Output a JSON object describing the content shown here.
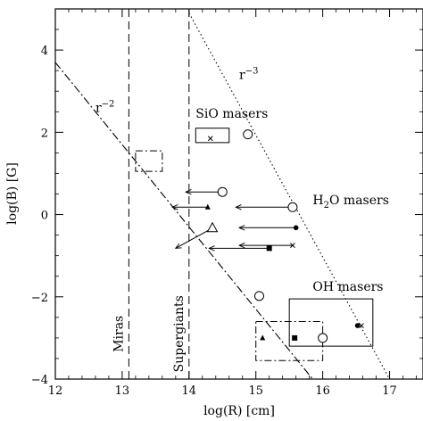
{
  "chart_data": {
    "type": "scatter",
    "xlabel": "log(R) [cm]",
    "ylabel": "log(B) [G]",
    "xlim": [
      12,
      17.5
    ],
    "ylim": [
      -4,
      5
    ],
    "x_ticks": [
      12,
      13,
      14,
      15,
      16,
      17
    ],
    "y_ticks": [
      -4,
      -2,
      0,
      2,
      4
    ],
    "x_tick_labels": [
      "12",
      "13",
      "14",
      "15",
      "16",
      "17"
    ],
    "y_tick_labels": [
      "−4",
      "−2",
      "0",
      "2",
      "4"
    ],
    "grid": false,
    "vertical_lines": [
      {
        "x": 13.1,
        "label": "Miras",
        "label_y": -2.9
      },
      {
        "x": 14.0,
        "label": "Supergiants",
        "label_y": -2.9
      }
    ],
    "power_laws": [
      {
        "label": "r",
        "exponent": "−2",
        "style": "dash-dot",
        "points": [
          [
            12,
            3.7
          ],
          [
            15.85,
            -4
          ]
        ],
        "label_at": [
          12.6,
          2.5
        ]
      },
      {
        "label": "r",
        "exponent": "−3",
        "style": "dotted",
        "points": [
          [
            14.0,
            4.9
          ],
          [
            17.0,
            -4
          ]
        ],
        "label_at": [
          14.75,
          3.3
        ]
      }
    ],
    "annotations": [
      {
        "text": "SiO masers",
        "x": 14.1,
        "y": 2.35
      },
      {
        "text": "H",
        "sub": "2",
        "rest": "O masers",
        "x": 15.85,
        "y": 0.25
      },
      {
        "text": "OH masers",
        "x": 15.85,
        "y": -1.85
      }
    ],
    "regions": [
      {
        "style": "solid",
        "x": [
          14.1,
          14.6
        ],
        "y": [
          1.75,
          2.1
        ]
      },
      {
        "style": "dash-dot",
        "x": [
          13.2,
          13.6
        ],
        "y": [
          1.05,
          1.55
        ]
      },
      {
        "style": "dash-dot",
        "x": [
          15.0,
          16.0
        ],
        "y": [
          -3.55,
          -2.6
        ]
      },
      {
        "style": "solid",
        "x": [
          15.5,
          16.75
        ],
        "y": [
          -3.2,
          -2.05
        ]
      }
    ],
    "points": [
      {
        "marker": "x",
        "x": 14.32,
        "y": 1.85
      },
      {
        "marker": "open-circle",
        "x": 14.88,
        "y": 1.95
      },
      {
        "marker": "open-circle",
        "x": 14.5,
        "y": 0.55
      },
      {
        "marker": "open-circle",
        "x": 15.55,
        "y": 0.18
      },
      {
        "marker": "open-triangle",
        "x": 14.35,
        "y": -0.33
      },
      {
        "marker": "open-circle",
        "x": 15.05,
        "y": -1.98
      },
      {
        "marker": "filled-circle",
        "x": 15.6,
        "y": -0.32
      },
      {
        "marker": "filled-triangle",
        "x": 14.28,
        "y": 0.18
      },
      {
        "marker": "filled-square",
        "x": 15.2,
        "y": -0.82
      },
      {
        "marker": "x",
        "x": 15.55,
        "y": -0.75
      },
      {
        "marker": "filled-triangle",
        "x": 15.1,
        "y": -3.0
      },
      {
        "marker": "filled-square",
        "x": 15.58,
        "y": -3.0
      },
      {
        "marker": "open-circle",
        "x": 16.0,
        "y": -3.0
      },
      {
        "marker": "filled-circle",
        "x": 16.52,
        "y": -2.7
      },
      {
        "marker": "x",
        "x": 16.58,
        "y": -2.7
      }
    ],
    "arrows": [
      {
        "from": [
          14.5,
          0.55
        ],
        "to": [
          13.95,
          0.55
        ]
      },
      {
        "from": [
          15.55,
          0.18
        ],
        "to": [
          14.7,
          0.18
        ]
      },
      {
        "from": [
          14.28,
          0.18
        ],
        "to": [
          13.75,
          0.18
        ]
      },
      {
        "from": [
          15.6,
          -0.32
        ],
        "to": [
          14.75,
          -0.32
        ]
      },
      {
        "from": [
          14.35,
          -0.33
        ],
        "to": [
          13.8,
          -0.82
        ]
      },
      {
        "from": [
          15.55,
          -0.75
        ],
        "to": [
          14.75,
          -0.75
        ]
      },
      {
        "from": [
          15.2,
          -0.82
        ],
        "to": [
          14.3,
          -0.82
        ]
      }
    ]
  }
}
